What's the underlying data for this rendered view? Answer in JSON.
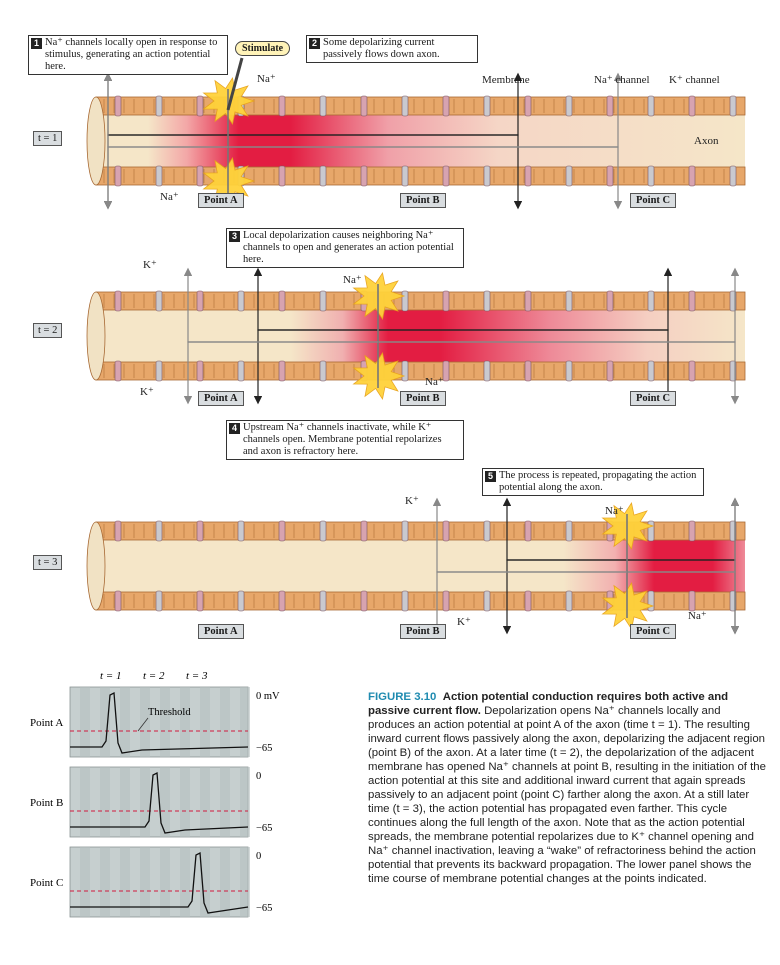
{
  "callouts": {
    "c1": {
      "num": "1",
      "text": "Na⁺ channels locally open in response to stimulus, generating an action potential here."
    },
    "c2": {
      "num": "2",
      "text": "Some depolarizing current passively flows down axon."
    },
    "c3": {
      "num": "3",
      "text": "Local depolarization causes neighboring Na⁺ channels to open and generates an action potential here."
    },
    "c4": {
      "num": "4",
      "text": "Upstream Na⁺ channels inactivate, while K⁺ channels open. Membrane potential repolarizes and axon is refractory here."
    },
    "c5": {
      "num": "5",
      "text": "The process is repeated, propagating the action potential along the axon."
    }
  },
  "labels": {
    "stimulate": "Stimulate",
    "na": "Na⁺",
    "k": "K⁺",
    "membrane": "Membrane",
    "na_channel": "Na⁺ channel",
    "k_channel": "K⁺ channel",
    "axon": "Axon",
    "point_a": "Point A",
    "point_b": "Point B",
    "point_c": "Point C",
    "t1": "t = 1",
    "t2": "t = 2",
    "t3": "t = 3",
    "threshold": "Threshold",
    "zero_mv": "0 mV",
    "zero": "0",
    "minus65": "−65"
  },
  "traces": {
    "time_labels": [
      "t = 1",
      "t = 2",
      "t = 3"
    ],
    "rows": [
      {
        "label": "Point A",
        "top_label": "0 mV",
        "bottom_label": "−65",
        "spike_time": 1
      },
      {
        "label": "Point B",
        "top_label": "0",
        "bottom_label": "−65",
        "spike_time": 2
      },
      {
        "label": "Point C",
        "top_label": "0",
        "bottom_label": "−65",
        "spike_time": 3
      }
    ]
  },
  "caption": {
    "fig_num": "FIGURE 3.10",
    "title": "Action potential conduction requires both active and passive current flow.",
    "body": "Depolarization opens Na⁺ channels locally and produces an action potential at point A of the axon (time t = 1). The resulting inward current flows passively along the axon, depolarizing the adjacent region (point B) of the axon. At a later time (t = 2), the depolarization of the adjacent membrane has opened Na⁺ channels at point B, resulting in the initiation of the action potential at this site and additional inward current that again spreads passively to an adjacent point (point C) farther along the axon. At a still later time (t = 3), the action potential has propagated even farther. This cycle continues along the full length of the axon. Note that as the action potential spreads, the membrane potential repolarizes due to K⁺ channel opening and Na⁺ channel inactivation, leaving a “wake” of refractoriness behind the action potential that prevents its backward propagation. The lower panel shows the time course of membrane potential changes at the points indicated."
  },
  "colors": {
    "axon_fill": "#f5e6c8",
    "membrane": "#e7a76a",
    "depolarized": "#e31d42",
    "flash": "#ffd23a",
    "na_channel": "#d7a3b0",
    "k_channel": "#c9c9cf",
    "caption_accent": "#1f8bb0"
  }
}
